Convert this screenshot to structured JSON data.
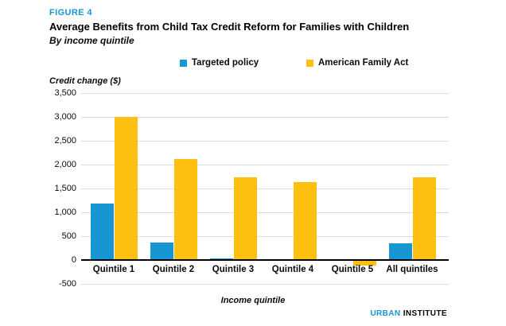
{
  "header": {
    "figure_label": "FIGURE 4",
    "title": "Average Benefits from Child Tax Credit Reform for Families with Children",
    "subtitle": "By income quintile"
  },
  "legend": [
    {
      "label": "Targeted policy",
      "color": "#1696d2"
    },
    {
      "label": "American Family Act",
      "color": "#fdbf11"
    }
  ],
  "chart_data": {
    "type": "bar",
    "title": "Average Benefits from Child Tax Credit Reform for Families with Children",
    "subtitle": "By income quintile",
    "categories": [
      "Quintile 1",
      "Quintile 2",
      "Quintile 3",
      "Quintile 4",
      "Quintile 5",
      "All quintiles"
    ],
    "series": [
      {
        "name": "Targeted policy",
        "color": "#1696d2",
        "values": [
          1190,
          360,
          40,
          0,
          0,
          350
        ]
      },
      {
        "name": "American Family Act",
        "color": "#fdbf11",
        "values": [
          3000,
          2110,
          1730,
          1630,
          -100,
          1740
        ]
      }
    ],
    "xlabel": "Income quintile",
    "ylabel": "Credit change ($)",
    "ylim": [
      -500,
      3500
    ],
    "ytick_step": 500,
    "ytick_labels": [
      "3,500",
      "3,000",
      "2,500",
      "2,000",
      "1,500",
      "1,000",
      "500",
      "0",
      "-500"
    ],
    "grid": true,
    "legend_position": "top",
    "zero_line_color": "#000000",
    "gridline_color": "#dcdcdc"
  },
  "footer": {
    "logo_primary": "URBAN",
    "logo_secondary": "INSTITUTE"
  }
}
